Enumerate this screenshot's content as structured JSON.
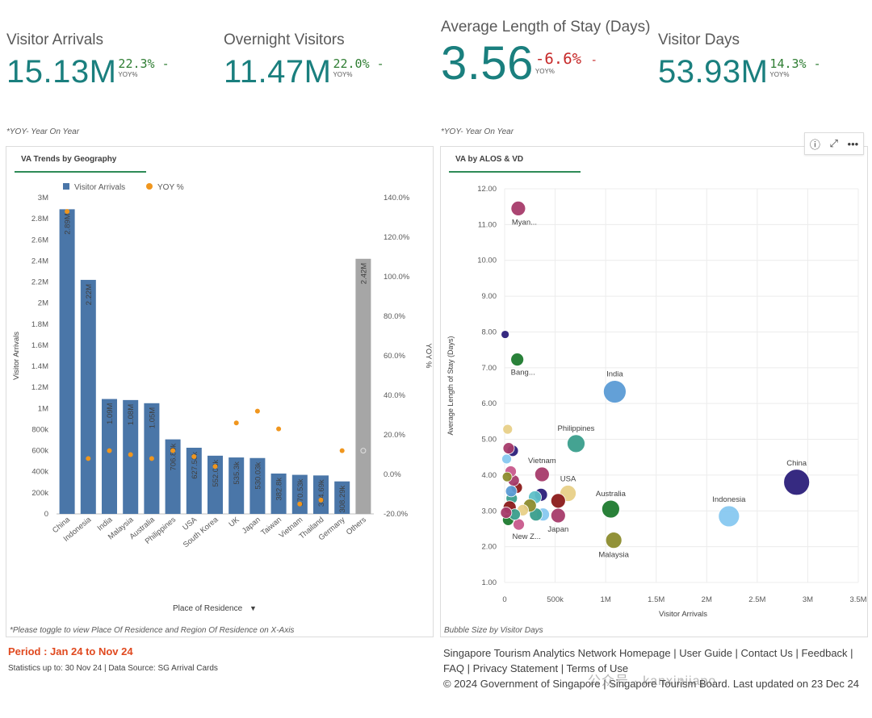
{
  "kpis": [
    {
      "title": "Visitor Arrivals",
      "value": "15.13M",
      "yoy": "22.3%",
      "yoy_label": "YOY%",
      "direction": "up",
      "color": "#2e7d32"
    },
    {
      "title": "Overnight Visitors",
      "value": "11.47M",
      "yoy": "22.0%",
      "yoy_label": "YOY%",
      "direction": "up",
      "color": "#2e7d32"
    },
    {
      "title": "Average Length of Stay (Days)",
      "value": "3.56",
      "yoy": "-6.6%",
      "yoy_label": "YOY%",
      "direction": "down",
      "color": "#c62828"
    },
    {
      "title": "Visitor Days",
      "value": "53.93M",
      "yoy": "14.3%",
      "yoy_label": "YOY%",
      "direction": "up",
      "color": "#2e7d32"
    }
  ],
  "notes": {
    "yoy_left": "*YOY- Year On Year",
    "yoy_right": "*YOY- Year On Year"
  },
  "toolbar": {
    "info_icon": "info-icon",
    "expand_icon": "expand-icon",
    "more_icon": "more-icon"
  },
  "left_panel": {
    "tab_label": "VA Trends by Geography",
    "x_axis_selector": "Place of Residence",
    "footnote": "*Please toggle to view Place Of Residence and Region Of Residence on X-Axis"
  },
  "right_panel": {
    "tab_label": "VA by ALOS & VD",
    "footnote": "Bubble Size by Visitor Days"
  },
  "chart_data": [
    {
      "type": "bar",
      "title": "VA Trends by Geography",
      "xlabel": "Place of Residence",
      "ylabel": "Visitor Arrivals",
      "y2label": "YOY %",
      "legend": [
        "Visitor Arrivals",
        "YOY %"
      ],
      "legend_position": "top",
      "ylim": [
        0,
        3000000
      ],
      "y2lim": [
        -20,
        140
      ],
      "yticks": [
        "0",
        "200k",
        "400k",
        "600k",
        "800k",
        "1M",
        "1.2M",
        "1.4M",
        "1.6M",
        "1.8M",
        "2M",
        "2.2M",
        "2.4M",
        "2.6M",
        "2.8M",
        "3M"
      ],
      "y2ticks": [
        "-20.0%",
        "0.0%",
        "20.0%",
        "40.0%",
        "60.0%",
        "80.0%",
        "100.0%",
        "120.0%",
        "140.0%"
      ],
      "categories": [
        "China",
        "Indonesia",
        "India",
        "Malaysia",
        "Australia",
        "Philippines",
        "USA",
        "South Korea",
        "UK",
        "Japan",
        "Taiwan",
        "Vietnam",
        "Thailand",
        "Germany",
        "Others"
      ],
      "values": [
        2890000,
        2220000,
        1090000,
        1080000,
        1050000,
        706890,
        627580,
        552030,
        535300,
        530030,
        382800,
        370530,
        364690,
        308290,
        2420000
      ],
      "value_labels": [
        "2.89M",
        "2.22M",
        "1.09M",
        "1.08M",
        "1.05M",
        "706.89k",
        "627.58k",
        "552.03k",
        "535.3k",
        "530.03k",
        "382.8k",
        "370.53k",
        "364.69k",
        "308.29k",
        "2.42M"
      ],
      "yoy": [
        133,
        8,
        12,
        10,
        8,
        12,
        9,
        4,
        26,
        32,
        23,
        -15,
        -13,
        12,
        null
      ],
      "colors": {
        "bar": "#4a76a8",
        "others": "#a6a6a6",
        "yoy": "#f0961e"
      }
    },
    {
      "type": "scatter",
      "title": "VA by ALOS & VD",
      "xlabel": "Visitor Arrivals",
      "ylabel": "Average Length of Stay (Days)",
      "size_label": "Bubble Size by Visitor Days",
      "xlim": [
        0,
        3500000
      ],
      "ylim": [
        1,
        12
      ],
      "xticks": [
        "0",
        "500k",
        "1M",
        "1.5M",
        "2M",
        "2.5M",
        "3M",
        "3.5M"
      ],
      "yticks": [
        "1.00",
        "2.00",
        "3.00",
        "4.00",
        "5.00",
        "6.00",
        "7.00",
        "8.00",
        "9.00",
        "10.00",
        "11.00",
        "12.00"
      ],
      "points": [
        {
          "label": "Myan...",
          "x": 135000,
          "y": 11.45,
          "r": 9,
          "color": "#a63b6a",
          "label_pos": "below"
        },
        {
          "label": "",
          "x": 5000,
          "y": 7.93,
          "r": 5,
          "color": "#2b1f7a"
        },
        {
          "label": "Bang...",
          "x": 125000,
          "y": 7.23,
          "r": 8,
          "color": "#1e7a2e",
          "label_pos": "below"
        },
        {
          "label": "India",
          "x": 1090000,
          "y": 6.33,
          "r": 14,
          "color": "#5b9bd5",
          "label_pos": "above"
        },
        {
          "label": "Philippines",
          "x": 706890,
          "y": 4.88,
          "r": 11,
          "color": "#3a9e8c",
          "label_pos": "above"
        },
        {
          "label": "Vietnam",
          "x": 370530,
          "y": 4.02,
          "r": 9,
          "color": "#a63b6a",
          "label_pos": "above"
        },
        {
          "label": "USA",
          "x": 627580,
          "y": 3.49,
          "r": 10,
          "color": "#e8d088",
          "label_pos": "above"
        },
        {
          "label": "China",
          "x": 2890000,
          "y": 3.8,
          "r": 16,
          "color": "#2b1f7a",
          "label_pos": "above"
        },
        {
          "label": "Indonesia",
          "x": 2220000,
          "y": 2.85,
          "r": 13,
          "color": "#87c8f0",
          "label_pos": "above"
        },
        {
          "label": "Australia",
          "x": 1050000,
          "y": 3.05,
          "r": 11,
          "color": "#1e7a2e",
          "label_pos": "above"
        },
        {
          "label": "Malaysia",
          "x": 1080000,
          "y": 2.18,
          "r": 10,
          "color": "#8c8c2e",
          "label_pos": "below"
        },
        {
          "label": "Japan",
          "x": 530030,
          "y": 2.87,
          "r": 9,
          "color": "#a63b6a",
          "label_pos": "below"
        },
        {
          "label": "New Z...",
          "x": 140000,
          "y": 2.62,
          "r": 7,
          "color": "#c85a8c",
          "label_pos": "below"
        },
        {
          "label": "",
          "x": 530000,
          "y": 3.28,
          "r": 9,
          "color": "#8b1a1a"
        },
        {
          "label": "",
          "x": 360000,
          "y": 3.45,
          "r": 8,
          "color": "#2b1f7a"
        },
        {
          "label": "",
          "x": 300000,
          "y": 3.38,
          "r": 8,
          "color": "#5fc0c8"
        },
        {
          "label": "",
          "x": 380000,
          "y": 2.9,
          "r": 8,
          "color": "#87c8f0"
        },
        {
          "label": "",
          "x": 310000,
          "y": 2.9,
          "r": 8,
          "color": "#3a9e8c"
        },
        {
          "label": "",
          "x": 250000,
          "y": 3.15,
          "r": 8,
          "color": "#8c8c2e"
        },
        {
          "label": "",
          "x": 180000,
          "y": 3.02,
          "r": 7,
          "color": "#e8d088"
        },
        {
          "label": "",
          "x": 120000,
          "y": 3.65,
          "r": 7,
          "color": "#8b1a1a"
        },
        {
          "label": "",
          "x": 90000,
          "y": 3.85,
          "r": 7,
          "color": "#a63b6a"
        },
        {
          "label": "",
          "x": 60000,
          "y": 4.1,
          "r": 7,
          "color": "#c85a8c"
        },
        {
          "label": "",
          "x": 80000,
          "y": 4.68,
          "r": 7,
          "color": "#2b1f7a"
        },
        {
          "label": "",
          "x": 30000,
          "y": 5.28,
          "r": 6,
          "color": "#e8d088"
        },
        {
          "label": "",
          "x": 20000,
          "y": 4.45,
          "r": 6,
          "color": "#87c8f0"
        },
        {
          "label": "",
          "x": 40000,
          "y": 4.75,
          "r": 7,
          "color": "#a63b6a"
        },
        {
          "label": "",
          "x": 70000,
          "y": 3.35,
          "r": 7,
          "color": "#3a9e8c"
        },
        {
          "label": "",
          "x": 50000,
          "y": 3.1,
          "r": 8,
          "color": "#8b1a1a"
        },
        {
          "label": "",
          "x": 35000,
          "y": 2.75,
          "r": 7,
          "color": "#1e7a2e"
        },
        {
          "label": "",
          "x": 100000,
          "y": 2.9,
          "r": 7,
          "color": "#3a9e8c"
        },
        {
          "label": "",
          "x": 25000,
          "y": 3.95,
          "r": 6,
          "color": "#8c8c2e"
        },
        {
          "label": "",
          "x": 65000,
          "y": 3.55,
          "r": 7,
          "color": "#5b9bd5"
        },
        {
          "label": "",
          "x": 15000,
          "y": 2.95,
          "r": 7,
          "color": "#a63b6a"
        }
      ]
    }
  ],
  "period": "Period : Jan 24 to Nov 24",
  "stats": "Statistics up to: 30 Nov 24 | Data Source: SG Arrival Cards",
  "footer": {
    "links": [
      "Singapore Tourism Analytics Network Homepage",
      "User Guide",
      "Contact Us",
      "Feedback",
      "FAQ",
      "Privacy Statement",
      "Terms of Use"
    ],
    "copyright": "© 2024 Government of Singapore | Singapore Tourism Board. Last updated on 23 Dec 24"
  },
  "watermark": "公众号 · kanxinjiapo"
}
